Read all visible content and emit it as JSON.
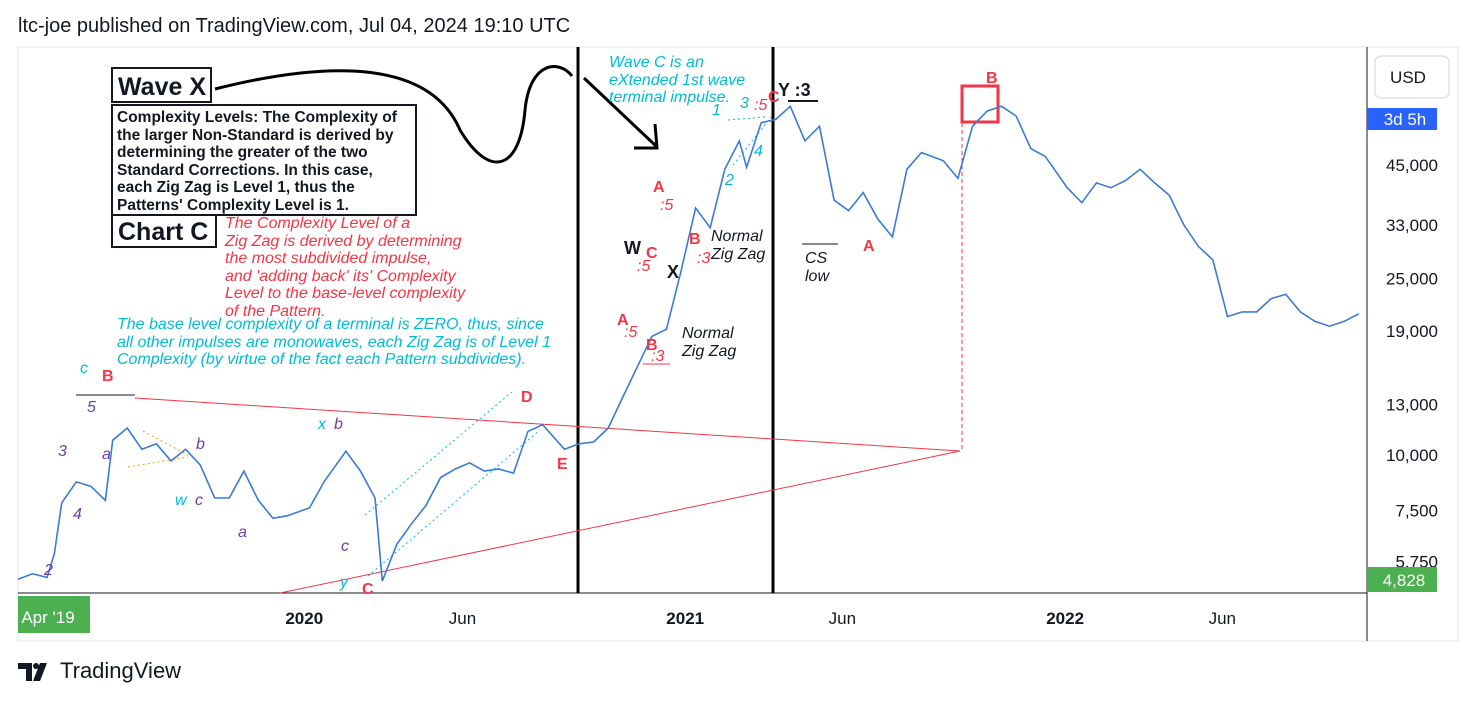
{
  "header": {
    "text": "ltc-joe published on TradingView.com, Jul 04, 2024 19:10 UTC"
  },
  "footer": {
    "brand": "TradingView",
    "logo_icon": "tradingview-logo-icon"
  },
  "price_axis": {
    "currency": "USD",
    "countdown": "3d 5h",
    "last_price": "4,828",
    "ticks": [
      "45,000",
      "33,000",
      "25,000",
      "19,000",
      "13,000",
      "10,000",
      "7,500",
      "5,750"
    ]
  },
  "time_axis": {
    "start_label": "Apr '19",
    "labels": [
      "2020",
      "Jun",
      "2021",
      "Jun",
      "2022",
      "Jun"
    ]
  },
  "colors": {
    "line": "#3a7bd5",
    "red": "#f23645",
    "cyan": "#00bcd4",
    "purple": "#6a3fa5",
    "green": "#4caf50",
    "blue_tag": "#2962ff"
  },
  "notes": {
    "wave_x_title": "Wave X",
    "wave_x_text": "Complexity Levels: The Complexity of\nthe larger Non-Standard is derived by\ndetermining the greater of the two\nStandard Corrections. In this case,\neach Zig Zag is Level 1, thus the\nPatterns' Complexity Level is 1.",
    "chart_c_title": "Chart C",
    "red_note": "The Complexity Level of a\nZig Zag is derived by determining\nthe most subdivided impulse,\nand 'adding back' its' Complexity\nLevel to the base-level complexity\nof the Pattern.",
    "cyan_note": "The base level complexity of a terminal is ZERO, thus, since\nall other impulses are monowaves, each Zig Zag is of Level 1\nComplexity (by virtue of the fact each Pattern subdivides).",
    "wave_c_note": "Wave C is an\neXtended 1st wave\nterminal impulse.",
    "normal_zz_1": "Normal\nZig Zag",
    "normal_zz_2": "Normal\nZig Zag",
    "cs_low": "CS\nlow"
  },
  "wave_labels": {
    "B_top_left": "B",
    "c_top_left": "c",
    "five": "5",
    "three": "3",
    "a1": "a",
    "four": "4",
    "two": "2",
    "b1": "b",
    "w1": "w",
    "c1": "c",
    "a2": "a",
    "x1": "x",
    "b2": "b",
    "c2": "c",
    "y1": "y",
    "C1": "C",
    "D1": "D",
    "E1": "E",
    "A1": "A",
    "B1": "B",
    "A_mid": "A",
    "colon5_a": ":5",
    "B_mid": "B",
    "colon3_a": ":3",
    "W": "W",
    "C_mid": "C",
    "colon5_b": ":5",
    "X_mid": "X",
    "A_top": "A",
    "colon5_c": ":5",
    "B_top": "B",
    "colon3_b": ":3",
    "one": "1",
    "three_t": "3",
    "colon5_t": ":5",
    "C_top": "C",
    "two_t": "2",
    "four_t": "4",
    "Y3": "Y :3",
    "A_right": "A",
    "B_right": "B"
  },
  "chart_data": {
    "type": "line",
    "title": "",
    "xlabel": "",
    "ylabel": "",
    "y_scale": "log",
    "ylim": [
      5000,
      70000
    ],
    "x_range": [
      "2019-04",
      "2022-10"
    ],
    "grid": false,
    "series": [
      {
        "values_xy": [
          [
            "2019-04-01",
            5250
          ],
          [
            "2019-04-15",
            5400
          ],
          [
            "2019-04-29",
            5300
          ],
          [
            "2019-05-06",
            6000
          ],
          [
            "2019-05-13",
            7800
          ],
          [
            "2019-05-27",
            8700
          ],
          [
            "2019-06-10",
            8500
          ],
          [
            "2019-06-24",
            7900
          ],
          [
            "2019-07-01",
            10800
          ],
          [
            "2019-07-15",
            11500
          ],
          [
            "2019-07-29",
            10300
          ],
          [
            "2019-08-12",
            10600
          ],
          [
            "2019-08-26",
            9700
          ],
          [
            "2019-09-09",
            10300
          ],
          [
            "2019-09-23",
            9500
          ],
          [
            "2019-10-07",
            8000
          ],
          [
            "2019-10-21",
            8000
          ],
          [
            "2019-11-04",
            9200
          ],
          [
            "2019-11-18",
            7900
          ],
          [
            "2019-12-02",
            7200
          ],
          [
            "2019-12-16",
            7300
          ],
          [
            "2020-01-06",
            7600
          ],
          [
            "2020-01-20",
            8700
          ],
          [
            "2020-02-10",
            10200
          ],
          [
            "2020-02-24",
            9200
          ],
          [
            "2020-03-09",
            8000
          ],
          [
            "2020-03-16",
            5200
          ],
          [
            "2020-03-30",
            6300
          ],
          [
            "2020-04-13",
            7000
          ],
          [
            "2020-04-27",
            7700
          ],
          [
            "2020-05-11",
            8900
          ],
          [
            "2020-05-25",
            9300
          ],
          [
            "2020-06-08",
            9600
          ],
          [
            "2020-06-22",
            9200
          ],
          [
            "2020-07-06",
            9300
          ],
          [
            "2020-07-20",
            9100
          ],
          [
            "2020-08-03",
            11300
          ],
          [
            "2020-08-17",
            11700
          ],
          [
            "2020-09-07",
            10300
          ],
          [
            "2020-09-21",
            10600
          ],
          [
            "2020-10-05",
            10700
          ],
          [
            "2020-10-19",
            11500
          ],
          [
            "2020-11-02",
            13500
          ],
          [
            "2020-11-16",
            15800
          ],
          [
            "2020-11-30",
            18500
          ],
          [
            "2020-12-14",
            19200
          ],
          [
            "2020-12-28",
            26000
          ],
          [
            "2021-01-11",
            36000
          ],
          [
            "2021-01-25",
            32500
          ],
          [
            "2021-02-08",
            44000
          ],
          [
            "2021-02-22",
            51000
          ],
          [
            "2021-03-01",
            44500
          ],
          [
            "2021-03-15",
            56000
          ],
          [
            "2021-03-29",
            57000
          ],
          [
            "2021-04-12",
            61000
          ],
          [
            "2021-04-26",
            51000
          ],
          [
            "2021-05-10",
            55000
          ],
          [
            "2021-05-24",
            37500
          ],
          [
            "2021-06-07",
            35500
          ],
          [
            "2021-06-21",
            39000
          ],
          [
            "2021-07-05",
            34000
          ],
          [
            "2021-07-19",
            31000
          ],
          [
            "2021-08-02",
            44000
          ],
          [
            "2021-08-16",
            48000
          ],
          [
            "2021-09-06",
            46000
          ],
          [
            "2021-09-20",
            42000
          ],
          [
            "2021-10-04",
            55000
          ],
          [
            "2021-10-18",
            59500
          ],
          [
            "2021-11-01",
            61000
          ],
          [
            "2021-11-15",
            58000
          ],
          [
            "2021-11-29",
            49000
          ],
          [
            "2021-12-13",
            47000
          ],
          [
            "2022-01-03",
            40000
          ],
          [
            "2022-01-17",
            37000
          ],
          [
            "2022-01-31",
            41000
          ],
          [
            "2022-02-14",
            40000
          ],
          [
            "2022-02-28",
            41500
          ],
          [
            "2022-03-14",
            44000
          ],
          [
            "2022-03-28",
            41000
          ],
          [
            "2022-04-11",
            38500
          ],
          [
            "2022-04-25",
            33000
          ],
          [
            "2022-05-09",
            29500
          ],
          [
            "2022-05-23",
            27500
          ],
          [
            "2022-06-06",
            20500
          ],
          [
            "2022-06-20",
            21000
          ],
          [
            "2022-07-04",
            21000
          ],
          [
            "2022-07-18",
            22500
          ],
          [
            "2022-08-01",
            23000
          ],
          [
            "2022-08-15",
            21000
          ],
          [
            "2022-08-29",
            20000
          ],
          [
            "2022-09-12",
            19500
          ],
          [
            "2022-09-26",
            20000
          ],
          [
            "2022-10-10",
            20800
          ]
        ]
      }
    ]
  }
}
